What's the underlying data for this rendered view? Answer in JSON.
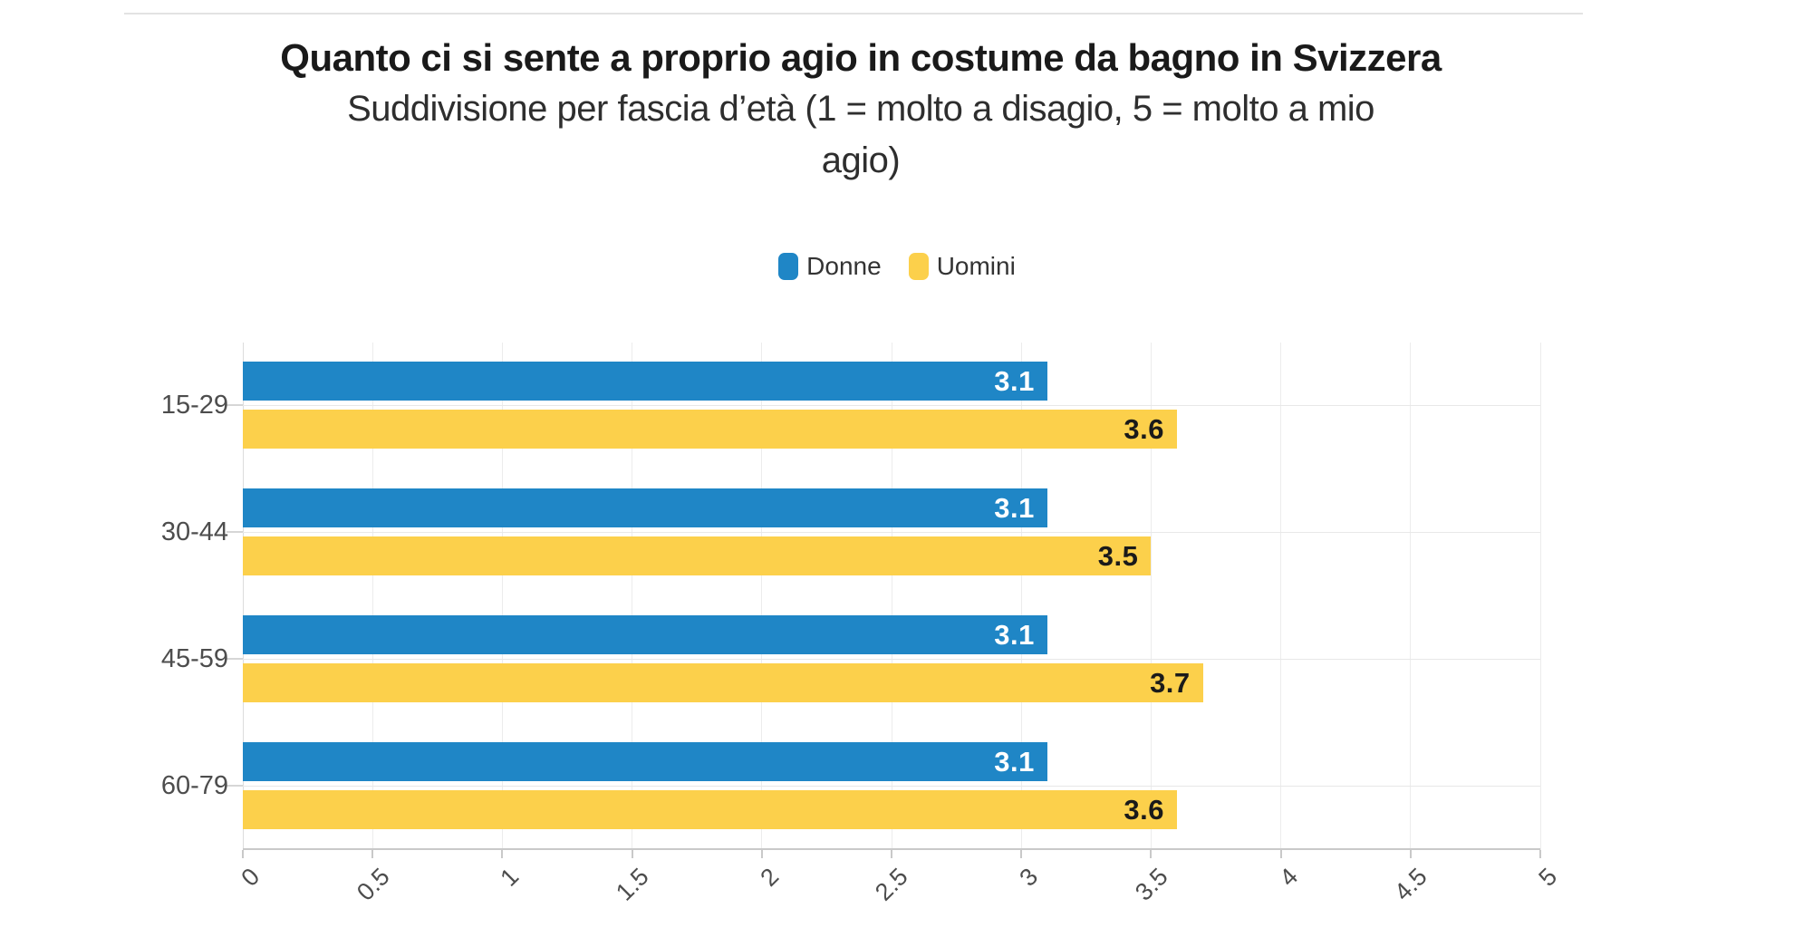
{
  "header": {
    "title": "Quanto ci si sente a proprio agio in costume da bagno in Svizzera",
    "subtitle_line1": "Suddivisione per fascia d’età (1 = molto a disagio, 5 = molto a mio",
    "subtitle_line2": "agio)"
  },
  "colors": {
    "donne_blue": "#1f86c6",
    "uomini_yellow": "#fcd04b",
    "grid": "#ececec",
    "axis": "#c9c9c9",
    "tick_text": "#4d4d4d",
    "title_text": "#1a1a1a"
  },
  "chart_data": {
    "type": "bar",
    "orientation": "horizontal",
    "title": "Quanto ci si sente a proprio agio in costume da bagno in Svizzera",
    "subtitle": "Suddivisione per fascia d’età (1 = molto a disagio, 5 = molto a mio agio)",
    "categories": [
      "15-29",
      "30-44",
      "45-59",
      "60-79"
    ],
    "series": [
      {
        "name": "Donne",
        "color": "#1f86c6",
        "label_color": "#ffffff",
        "values": [
          3.1,
          3.1,
          3.1,
          3.1
        ],
        "labels": [
          "3.1",
          "3.1",
          "3.1",
          "3.1"
        ]
      },
      {
        "name": "Uomini",
        "color": "#fcd04b",
        "label_color": "#1a1a1a",
        "values": [
          3.6,
          3.5,
          3.7,
          3.6
        ],
        "labels": [
          "3.6",
          "3.5",
          "3.7",
          "3.6"
        ]
      }
    ],
    "xlim": [
      0,
      5
    ],
    "x_ticks": [
      0,
      0.5,
      1,
      1.5,
      2,
      2.5,
      3,
      3.5,
      4,
      4.5,
      5
    ],
    "x_tick_labels": [
      "0",
      "0.5",
      "1",
      "1.5",
      "2",
      "2.5",
      "3",
      "3.5",
      "4",
      "4.5",
      "5"
    ],
    "grid": true,
    "legend_position": "top",
    "value_labels": "inside-end"
  }
}
